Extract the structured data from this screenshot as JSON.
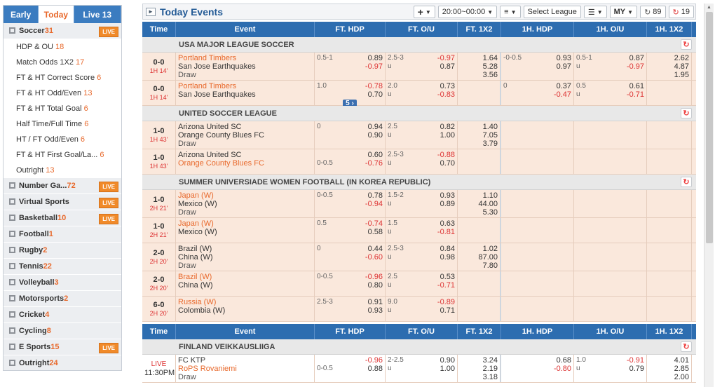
{
  "sidebar": {
    "tabs": [
      "Early",
      "Today",
      "Live 13"
    ],
    "sports": [
      {
        "name": "Soccer",
        "count": "31",
        "live": true,
        "expanded": true,
        "subs": [
          {
            "name": "HDP & OU",
            "count": "18"
          },
          {
            "name": "Match Odds 1X2",
            "count": "17"
          },
          {
            "name": "FT & HT Correct Score",
            "count": "6"
          },
          {
            "name": "FT & HT Odd/Even",
            "count": "13"
          },
          {
            "name": "FT & HT Total Goal",
            "count": "6"
          },
          {
            "name": "Half Time/Full Time",
            "count": "6"
          },
          {
            "name": "HT / FT Odd/Even",
            "count": "6"
          },
          {
            "name": "FT & HT First Goal/La...",
            "count": "6"
          },
          {
            "name": "Outright",
            "count": "13"
          }
        ]
      },
      {
        "name": "Number Ga...",
        "count": "72",
        "live": true
      },
      {
        "name": "Virtual Sports",
        "count": "",
        "live": true
      },
      {
        "name": "Basketball",
        "count": "10",
        "live": true
      },
      {
        "name": "Football",
        "count": "1",
        "live": false
      },
      {
        "name": "Rugby",
        "count": "2",
        "live": false
      },
      {
        "name": "Tennis",
        "count": "22",
        "live": false
      },
      {
        "name": "Volleyball",
        "count": "3",
        "live": false
      },
      {
        "name": "Motorsports",
        "count": "2",
        "live": false
      },
      {
        "name": "Cricket",
        "count": "4",
        "live": false
      },
      {
        "name": "Cycling",
        "count": "8",
        "live": false
      },
      {
        "name": "E Sports",
        "count": "15",
        "live": true
      },
      {
        "name": "Outright",
        "count": "24",
        "live": false
      }
    ],
    "live_label": "LIVE"
  },
  "toolbar": {
    "title": "Today Events",
    "add": "+",
    "time_range": "20:00~00:00",
    "select_league": "Select League",
    "currency": "MY",
    "refresh1": "89",
    "refresh2": "19"
  },
  "headers": [
    "Time",
    "Event",
    "FT. HDP",
    "FT. O/U",
    "FT. 1X2",
    "1H. HDP",
    "1H. O/U",
    "1H. 1X2"
  ],
  "leagues": [
    {
      "name": "USA MAJOR LEAGUE SOCCER",
      "rows": [
        {
          "score": "0-0",
          "time": "1H 14'",
          "home": "Portland Timbers",
          "away": "San Jose Earthquakes",
          "draw": "Draw",
          "fav": "home",
          "fthdp": {
            "line": "0.5-1",
            "h": "0.89",
            "a": "-0.97"
          },
          "ftou": {
            "line": "2.5-3",
            "u": "u",
            "o": "-0.97",
            "uo": "0.87"
          },
          "x12": [
            "1.64",
            "5.28",
            "3.56"
          ],
          "hthdp": {
            "line": "-0-0.5",
            "h": "0.93",
            "a": "0.97"
          },
          "htou": {
            "line": "0.5-1",
            "u": "u",
            "o": "0.87",
            "uo": "-0.97"
          },
          "htx12": [
            "2.62",
            "4.87",
            "1.95"
          ]
        },
        {
          "score": "0-0",
          "time": "1H 14'",
          "home": "Portland Timbers",
          "away": "San Jose Earthquakes",
          "draw": "",
          "fav": "home",
          "fthdp": {
            "line": "1.0",
            "h": "-0.78",
            "a": "0.70"
          },
          "ftou": {
            "line": "2.0",
            "u": "u",
            "o": "0.73",
            "uo": "-0.83"
          },
          "x12": [
            "",
            "",
            ""
          ],
          "hthdp": {
            "line": "0",
            "h": "0.37",
            "a": "-0.47"
          },
          "htou": {
            "line": "0.5",
            "u": "u",
            "o": "0.61",
            "uo": "-0.71"
          },
          "htx12": [
            "",
            "",
            ""
          ],
          "more": "5"
        }
      ]
    },
    {
      "name": "UNITED SOCCER LEAGUE",
      "rows": [
        {
          "score": "1-0",
          "time": "1H 43'",
          "home": "Arizona United SC",
          "away": "Orange County Blues FC",
          "draw": "Draw",
          "fav": "",
          "fthdp": {
            "line": "0",
            "h": "0.94",
            "a": "0.90"
          },
          "ftou": {
            "line": "2.5",
            "u": "u",
            "o": "0.82",
            "uo": "1.00"
          },
          "x12": [
            "1.40",
            "7.05",
            "3.79"
          ],
          "hthdp": {
            "line": "",
            "h": "",
            "a": ""
          },
          "htou": {
            "line": "",
            "u": "",
            "o": "",
            "uo": ""
          },
          "htx12": [
            "",
            "",
            ""
          ]
        },
        {
          "score": "1-0",
          "time": "1H 43'",
          "home": "Arizona United SC",
          "away": "Orange County Blues FC",
          "draw": "",
          "fav": "away",
          "awayline": "0-0.5",
          "fthdp": {
            "line": "",
            "h": "0.60",
            "a": "-0.76"
          },
          "ftou": {
            "line": "2.5-3",
            "u": "u",
            "o": "-0.88",
            "uo": "0.70"
          },
          "x12": [
            "",
            "",
            ""
          ],
          "hthdp": {
            "line": "",
            "h": "",
            "a": ""
          },
          "htou": {
            "line": "",
            "u": "",
            "o": "",
            "uo": ""
          },
          "htx12": [
            "",
            "",
            ""
          ]
        }
      ]
    },
    {
      "name": "SUMMER UNIVERSIADE WOMEN FOOTBALL (IN KOREA REPUBLIC)",
      "rows": [
        {
          "score": "1-0",
          "time": "2H 21'",
          "home": "Japan (W)",
          "away": "Mexico (W)",
          "draw": "Draw",
          "fav": "home",
          "fthdp": {
            "line": "0-0.5",
            "h": "0.78",
            "a": "-0.94"
          },
          "ftou": {
            "line": "1.5-2",
            "u": "u",
            "o": "0.93",
            "uo": "0.89"
          },
          "x12": [
            "1.10",
            "44.00",
            "5.30"
          ],
          "hthdp": {
            "line": "",
            "h": "",
            "a": ""
          },
          "htou": {
            "line": "",
            "u": "",
            "o": "",
            "uo": ""
          },
          "htx12": [
            "",
            "",
            ""
          ]
        },
        {
          "score": "1-0",
          "time": "2H 21'",
          "home": "Japan (W)",
          "away": "Mexico (W)",
          "draw": "",
          "fav": "home",
          "fthdp": {
            "line": "0.5",
            "h": "-0.74",
            "a": "0.58"
          },
          "ftou": {
            "line": "1.5",
            "u": "u",
            "o": "0.63",
            "uo": "-0.81"
          },
          "x12": [
            "",
            "",
            ""
          ],
          "hthdp": {
            "line": "",
            "h": "",
            "a": ""
          },
          "htou": {
            "line": "",
            "u": "",
            "o": "",
            "uo": ""
          },
          "htx12": [
            "",
            "",
            ""
          ]
        },
        {
          "score": "2-0",
          "time": "2H 20'",
          "home": "Brazil (W)",
          "away": "China (W)",
          "draw": "Draw",
          "fav": "",
          "fthdp": {
            "line": "0",
            "h": "0.44",
            "a": "-0.60"
          },
          "ftou": {
            "line": "2.5-3",
            "u": "u",
            "o": "0.84",
            "uo": "0.98"
          },
          "x12": [
            "1.02",
            "87.00",
            "7.80"
          ],
          "hthdp": {
            "line": "",
            "h": "",
            "a": ""
          },
          "htou": {
            "line": "",
            "u": "",
            "o": "",
            "uo": ""
          },
          "htx12": [
            "",
            "",
            ""
          ]
        },
        {
          "score": "2-0",
          "time": "2H 20'",
          "home": "Brazil (W)",
          "away": "China (W)",
          "draw": "",
          "fav": "home",
          "fthdp": {
            "line": "0-0.5",
            "h": "-0.96",
            "a": "0.80"
          },
          "ftou": {
            "line": "2.5",
            "u": "u",
            "o": "0.53",
            "uo": "-0.71"
          },
          "x12": [
            "",
            "",
            ""
          ],
          "hthdp": {
            "line": "",
            "h": "",
            "a": ""
          },
          "htou": {
            "line": "",
            "u": "",
            "o": "",
            "uo": ""
          },
          "htx12": [
            "",
            "",
            ""
          ]
        },
        {
          "score": "6-0",
          "time": "2H 20'",
          "home": "Russia (W)",
          "away": "Colombia (W)",
          "draw": "",
          "fav": "home",
          "fthdp": {
            "line": "2.5-3",
            "h": "0.91",
            "a": "0.93"
          },
          "ftou": {
            "line": "9.0",
            "u": "u",
            "o": "-0.89",
            "uo": "0.71"
          },
          "x12": [
            "",
            "",
            ""
          ],
          "hthdp": {
            "line": "",
            "h": "",
            "a": ""
          },
          "htou": {
            "line": "",
            "u": "",
            "o": "",
            "uo": ""
          },
          "htx12": [
            "",
            "",
            ""
          ]
        }
      ]
    }
  ],
  "league2": {
    "name": "FINLAND VEIKKAUSLIIGA",
    "row": {
      "score": "LIVE",
      "time": "11:30PM",
      "home": "FC KTP",
      "away": "RoPS Rovaniemi",
      "draw": "Draw",
      "fav": "away",
      "awayline": "0-0.5",
      "fthdp": {
        "line": "",
        "h": "-0.96",
        "a": "0.88"
      },
      "ftou": {
        "line": "2-2.5",
        "u": "u",
        "o": "0.90",
        "uo": "1.00"
      },
      "x12": [
        "3.24",
        "2.19",
        "3.18"
      ],
      "hthdp": {
        "line": "",
        "h": "0.68",
        "a": "-0.80"
      },
      "htou": {
        "line": "1.0",
        "u": "u",
        "o": "-0.91",
        "uo": "0.79"
      },
      "htx12": [
        "4.01",
        "2.85",
        "2.00"
      ]
    }
  }
}
